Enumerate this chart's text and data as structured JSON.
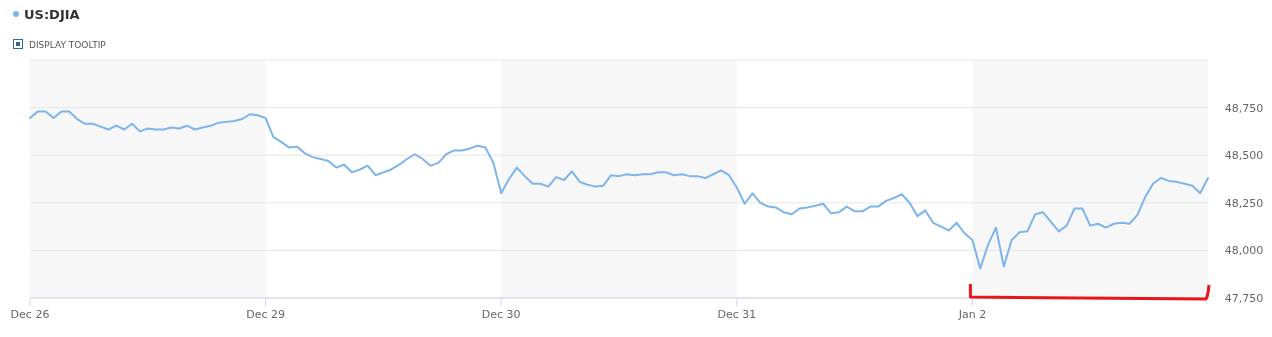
{
  "chart_data": {
    "type": "line",
    "title": "US:DJIA",
    "annotations": [
      "DISPLAY TOOLTIP"
    ],
    "categories": [
      "Dec 26",
      null,
      null,
      null,
      null,
      null,
      null,
      null,
      null,
      null,
      null,
      null,
      null,
      null,
      null,
      null,
      null,
      null,
      null,
      null,
      null,
      null,
      null,
      null,
      null,
      null,
      null,
      null,
      null,
      null,
      "Dec 29",
      null,
      null,
      null,
      null,
      null,
      null,
      null,
      null,
      null,
      null,
      null,
      null,
      null,
      null,
      null,
      null,
      null,
      null,
      null,
      null,
      null,
      null,
      null,
      null,
      null,
      null,
      null,
      null,
      null,
      "Dec 30",
      null,
      null,
      null,
      null,
      null,
      null,
      null,
      null,
      null,
      null,
      null,
      null,
      null,
      null,
      null,
      null,
      null,
      null,
      null,
      null,
      null,
      null,
      null,
      null,
      null,
      null,
      null,
      null,
      null,
      "Dec 31",
      null,
      null,
      null,
      null,
      null,
      null,
      null,
      null,
      null,
      null,
      null,
      null,
      null,
      null,
      null,
      null,
      null,
      null,
      null,
      null,
      null,
      null,
      null,
      null,
      null,
      null,
      null,
      null,
      null,
      "Jan 2",
      null,
      null,
      null,
      null,
      null,
      null,
      null,
      null,
      null,
      null,
      null,
      null,
      null,
      null,
      null,
      null,
      null,
      null,
      null,
      null,
      null,
      null,
      null,
      null,
      null,
      null,
      null,
      null,
      null,
      null
    ],
    "ylim": [
      47750,
      49000
    ],
    "yticks": [
      {
        "value": 47750,
        "label": "47,750"
      },
      {
        "value": 48000,
        "label": "48,000"
      },
      {
        "value": 48250,
        "label": "48,250"
      },
      {
        "value": 48500,
        "label": "48,500"
      },
      {
        "value": 48750,
        "label": "48,750"
      }
    ],
    "grid": "y",
    "marker": "none",
    "line_style": "solid",
    "bands": [
      {
        "axis": "x",
        "from": "Dec 26",
        "to": "Dec 29",
        "color": "#f7f7f7"
      },
      {
        "axis": "x",
        "from": "Dec 30",
        "to": "Dec 31",
        "color": "#f7f7f7"
      }
    ],
    "series": [
      {
        "color": "#7cb5ec",
        "values": [
          48695,
          48730,
          48730,
          48695,
          48730,
          48730,
          48690,
          48665,
          48665,
          48650,
          48635,
          48655,
          48635,
          48665,
          48625,
          48640,
          48635,
          48635,
          48645,
          48640,
          48655,
          48635,
          48645,
          48655,
          48670,
          48675,
          48680,
          48690,
          48715,
          48710,
          48695,
          48595,
          48570,
          48540,
          48545,
          48510,
          48490,
          48480,
          48470,
          48435,
          48450,
          48410,
          48425,
          48445,
          48395,
          48410,
          48425,
          48450,
          48480,
          48505,
          48480,
          48445,
          48460,
          48505,
          48525,
          48525,
          48535,
          48550,
          48540,
          48460,
          48300,
          48375,
          48435,
          48390,
          48350,
          48350,
          48335,
          48385,
          48370,
          48415,
          48360,
          48345,
          48335,
          48340,
          48395,
          48390,
          48400,
          48395,
          48400,
          48400,
          48410,
          48410,
          48395,
          48400,
          48390,
          48390,
          48380,
          48400,
          48420,
          48395,
          48330,
          48245,
          48300,
          48250,
          48230,
          48225,
          48200,
          48190,
          48220,
          48225,
          48235,
          48245,
          48195,
          48200,
          48230,
          48205,
          48205,
          48230,
          48230,
          48260,
          48275,
          48295,
          48250,
          48180,
          48210,
          48145,
          48125,
          48105,
          48145,
          48090,
          48055,
          47905,
          48030,
          48120,
          47915,
          48055,
          48095,
          48100,
          48190,
          48200,
          48150,
          48100,
          48130,
          48220,
          48220,
          48130,
          48140,
          48120,
          48140,
          48145,
          48140,
          48185,
          48280,
          48350,
          48380,
          48365,
          48360,
          48350,
          48340,
          48300,
          48380
        ]
      }
    ]
  }
}
